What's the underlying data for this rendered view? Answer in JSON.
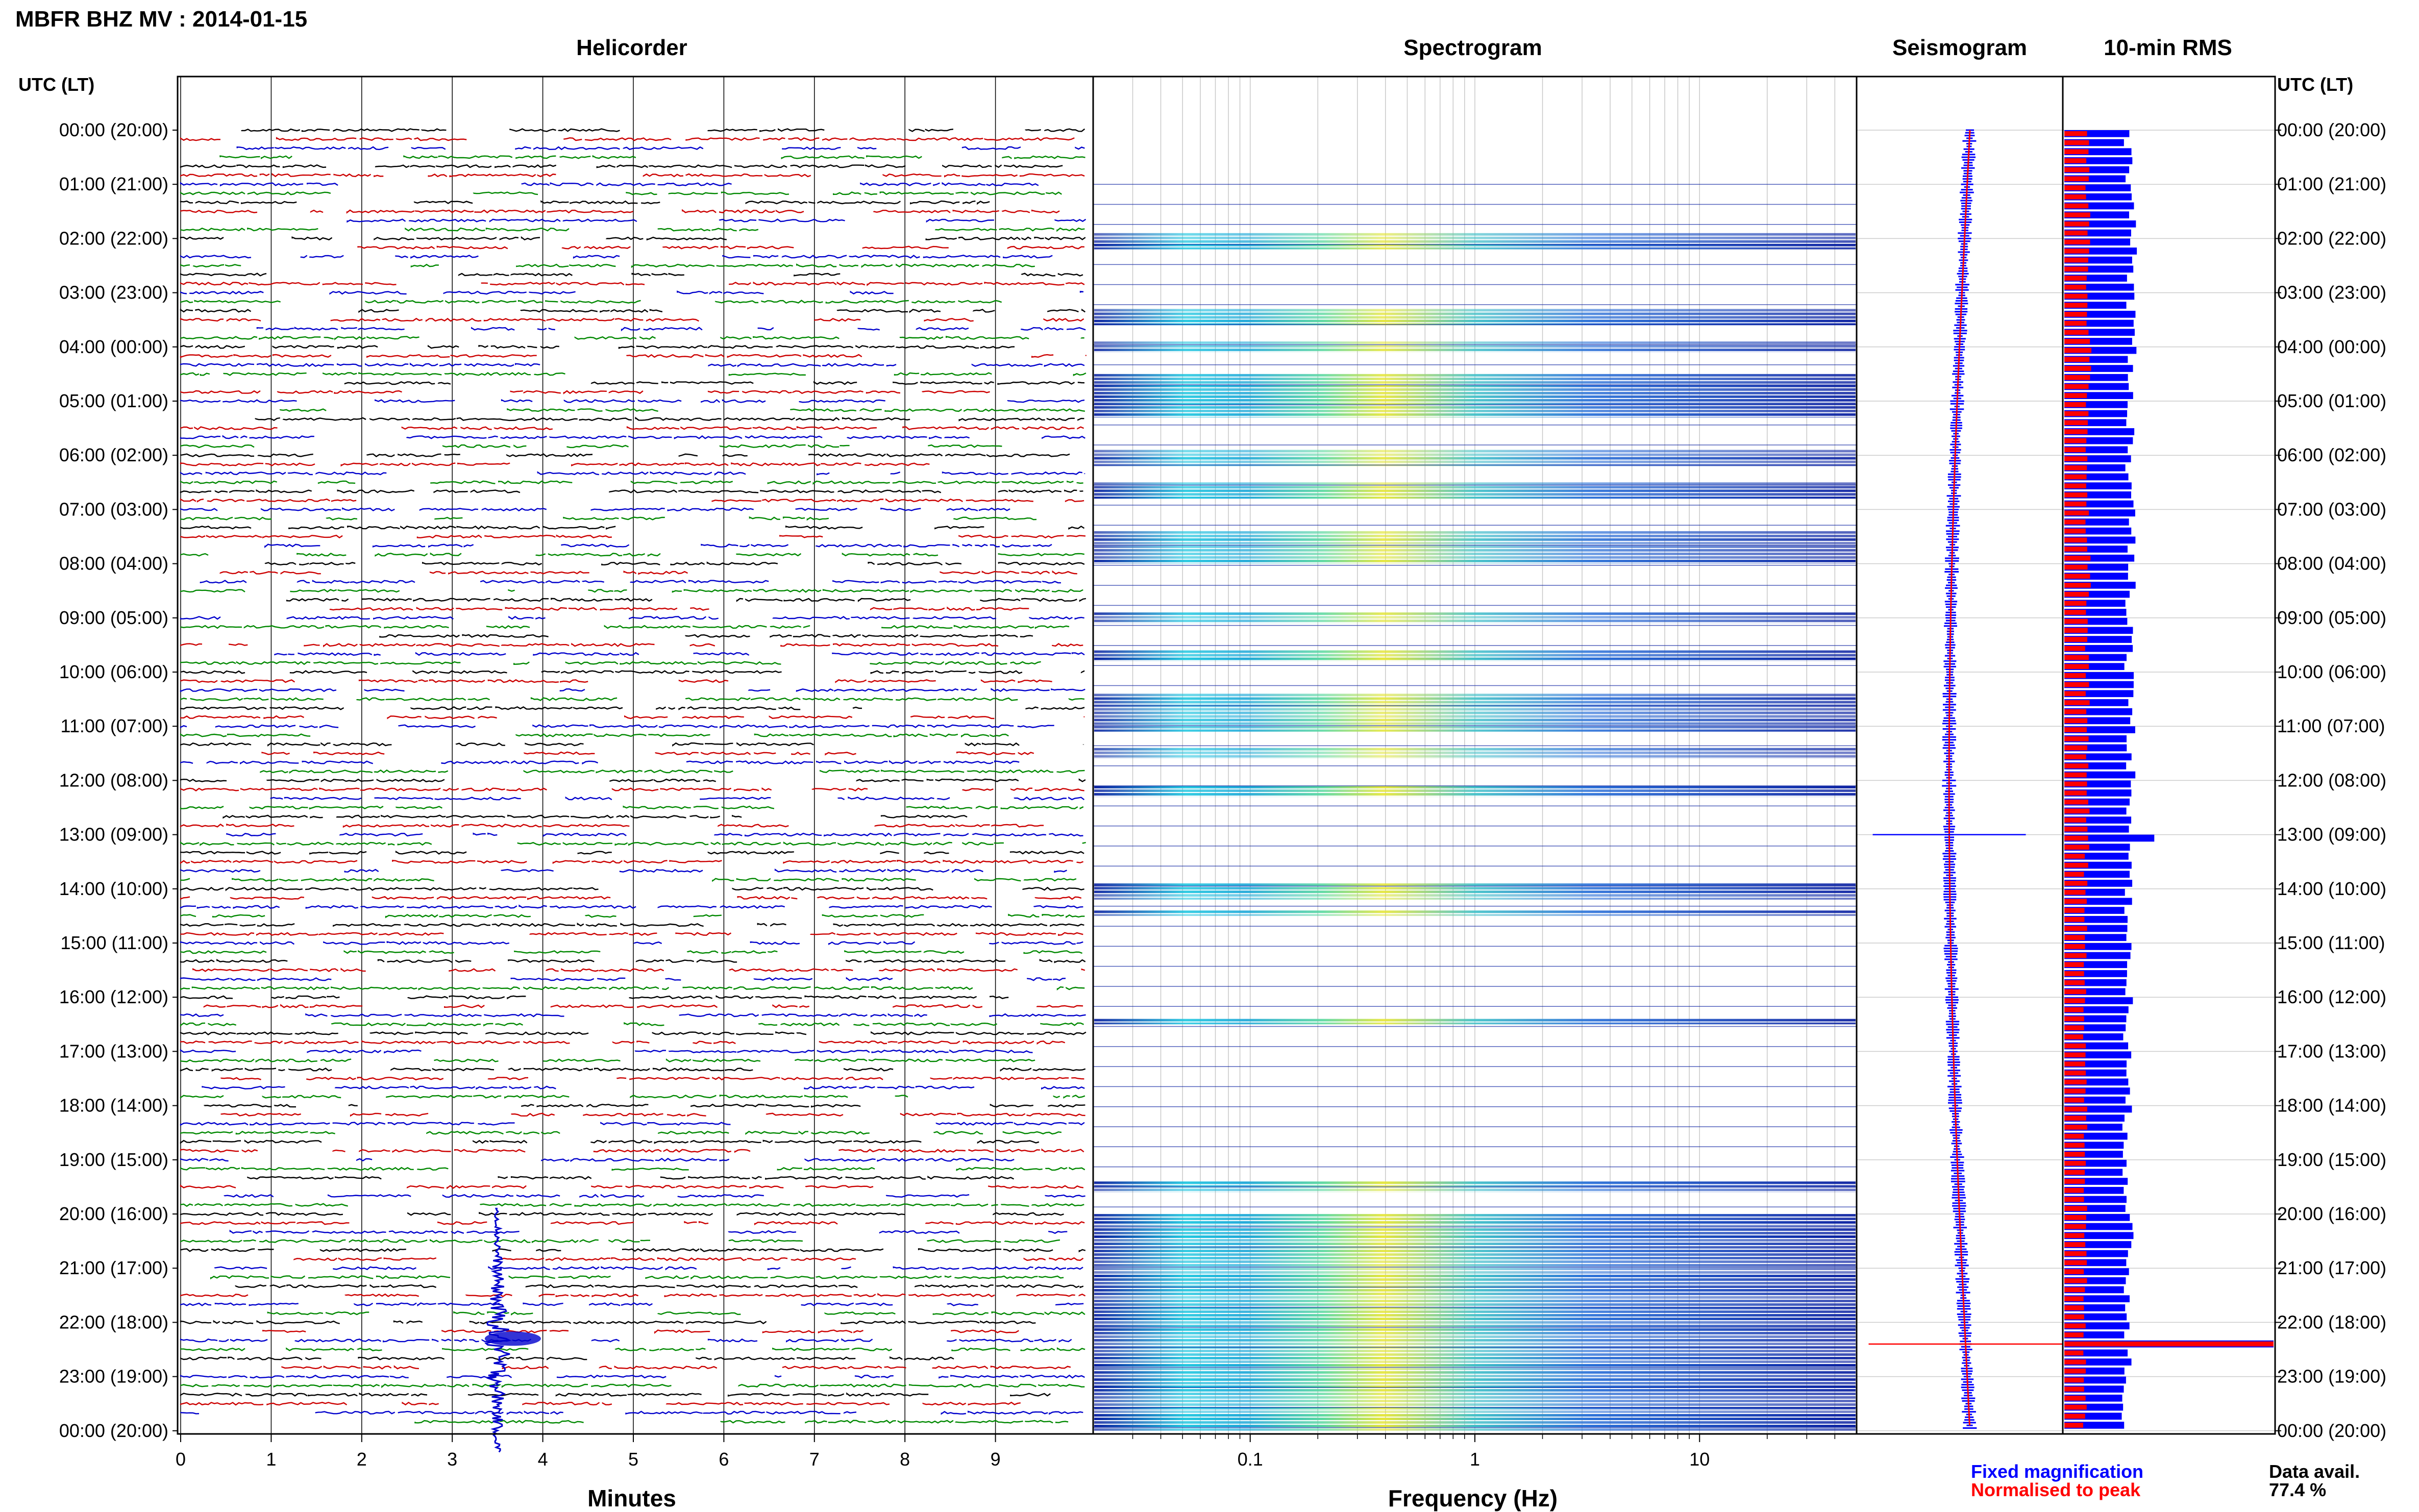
{
  "title": "MBFR BHZ MV : 2014-01-15",
  "panels": {
    "helicorder": "Helicorder",
    "spectrogram": "Spectrogram",
    "seismogram": "Seismogram",
    "rms": "10-min RMS"
  },
  "time_axis_label": "UTC (LT)",
  "time_labels": [
    "00:00 (20:00)",
    "01:00 (21:00)",
    "02:00 (22:00)",
    "03:00 (23:00)",
    "04:00 (00:00)",
    "05:00 (01:00)",
    "06:00 (02:00)",
    "07:00 (03:00)",
    "08:00 (04:00)",
    "09:00 (05:00)",
    "10:00 (06:00)",
    "11:00 (07:00)",
    "12:00 (08:00)",
    "13:00 (09:00)",
    "14:00 (10:00)",
    "15:00 (11:00)",
    "16:00 (12:00)",
    "17:00 (13:00)",
    "18:00 (14:00)",
    "19:00 (15:00)",
    "20:00 (16:00)",
    "21:00 (17:00)",
    "22:00 (18:00)",
    "23:00 (19:00)",
    "00:00 (20:00)"
  ],
  "helicorder_xlabel": "Minutes",
  "helicorder_ticks": [
    "0",
    "1",
    "2",
    "3",
    "4",
    "5",
    "6",
    "7",
    "8",
    "9"
  ],
  "spectrogram_xlabel": "Frequency (Hz)",
  "spectrogram_ticks": [
    "0.1",
    "1",
    "10"
  ],
  "legend": {
    "fixed": "Fixed magnification",
    "normalised": "Normalised to peak"
  },
  "data_avail_label": "Data avail.",
  "data_avail_value": "77.4 %",
  "colors": {
    "trace_cycle": [
      "#000000",
      "#cc0000",
      "#0000cc",
      "#008800"
    ],
    "fixed": "#0000ff",
    "normalised": "#ff0000",
    "spectrogram_low": "#0a1fa0",
    "spectrogram_mid": "#23c8e0",
    "spectrogram_high": "#e6e63a"
  },
  "chart_data": {
    "type": "heatmap",
    "description_fields": [
      "helicorder",
      "spectrogram",
      "seismogram",
      "rms"
    ],
    "helicorder": {
      "xlim": [
        0,
        10
      ],
      "x_unit": "Minutes",
      "rows": 144,
      "row_minutes": 10,
      "large_event": {
        "time_utc": "22:30",
        "minute": 3.5
      }
    },
    "spectrogram": {
      "xlim": [
        0.02,
        50
      ],
      "scale": "log",
      "x_unit": "Hz",
      "active_hours_utc": [
        [
          1.9,
          2.2
        ],
        [
          3.3,
          3.6
        ],
        [
          3.9,
          4.1
        ],
        [
          4.5,
          5.3
        ],
        [
          5.9,
          6.2
        ],
        [
          6.5,
          6.8
        ],
        [
          7.4,
          8.0
        ],
        [
          8.9,
          9.1
        ],
        [
          9.6,
          9.8
        ],
        [
          10.4,
          11.1
        ],
        [
          11.4,
          11.6
        ],
        [
          12.1,
          12.3
        ],
        [
          13.9,
          14.2
        ],
        [
          14.4,
          14.5
        ],
        [
          16.4,
          16.5
        ],
        [
          19.4,
          19.6
        ],
        [
          20.0,
          24.0
        ]
      ]
    },
    "seismogram": {
      "event_hours_utc": [
        13.0,
        22.4
      ]
    },
    "rms": {
      "hours_utc": [
        0,
        1,
        2,
        3,
        4,
        5,
        6,
        7,
        8,
        9,
        10,
        11,
        12,
        13,
        14,
        15,
        16,
        17,
        18,
        19,
        20,
        21,
        22,
        23,
        24
      ],
      "fixed": [
        0.3,
        0.32,
        0.33,
        0.31,
        0.33,
        0.32,
        0.31,
        0.32,
        0.33,
        0.31,
        0.31,
        0.32,
        0.32,
        0.32,
        0.31,
        0.3,
        0.31,
        0.3,
        0.3,
        0.3,
        0.31,
        0.3,
        0.31,
        0.3,
        0.29
      ],
      "normalised": [
        0.11,
        0.11,
        0.12,
        0.11,
        0.12,
        0.11,
        0.11,
        0.11,
        0.12,
        0.11,
        0.11,
        0.11,
        0.11,
        0.11,
        0.1,
        0.1,
        0.1,
        0.1,
        0.1,
        0.1,
        0.1,
        0.1,
        0.1,
        0.1,
        0.1
      ],
      "event_peaks": [
        {
          "hour": 13.0,
          "fixed": 0.43,
          "normalised": 0.1
        },
        {
          "hour": 22.4,
          "fixed": 1.0,
          "normalised": 1.0
        }
      ]
    }
  }
}
